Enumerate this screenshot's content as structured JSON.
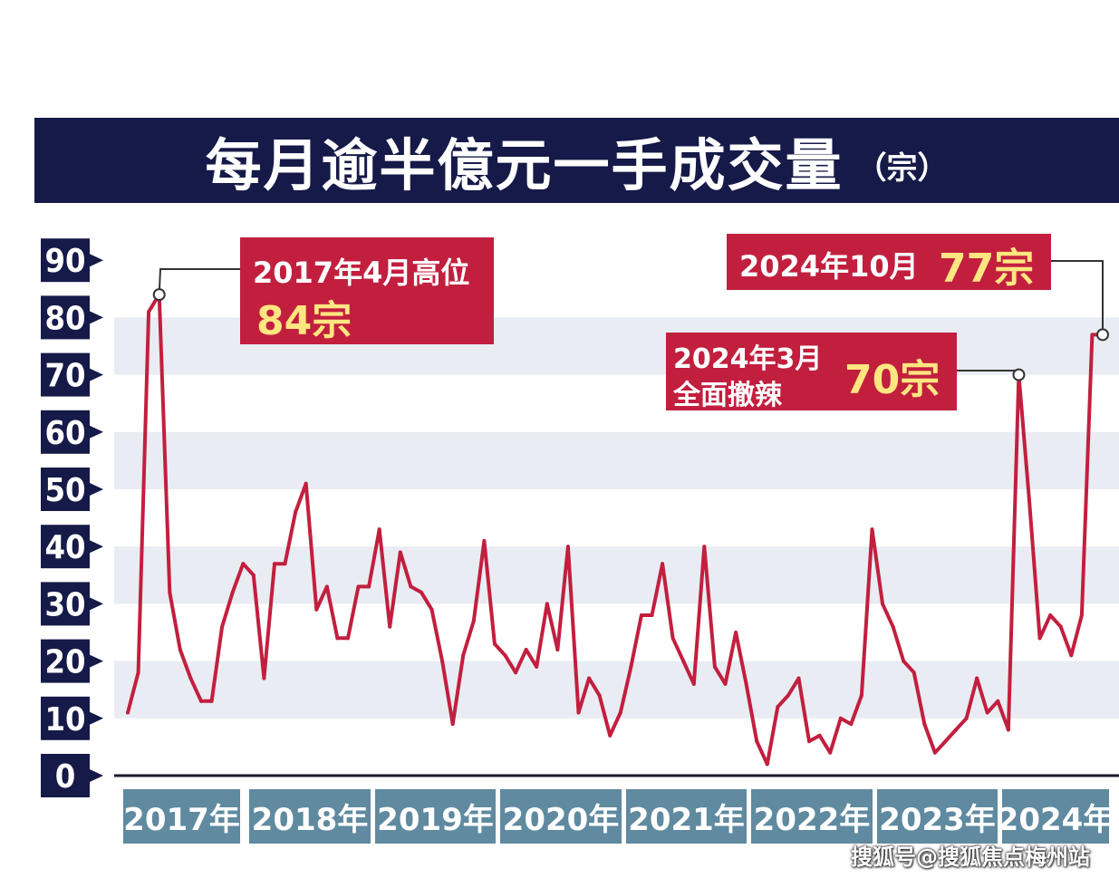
{
  "title": "每月逾半億元一手成交量",
  "title_unit": "（宗）",
  "watermark": "搜狐号@搜狐焦点梅州站",
  "colors": {
    "title_bg": "#161a48",
    "axis_tag": "#161a48",
    "line": "#c21f3f",
    "callout_bg": "#c21f3f",
    "callout_value": "#ffe680",
    "year_box": "#5f8aa0",
    "band": "#e9ecf3"
  },
  "callouts": {
    "peak_2017": {
      "line1": "2017年4月高位",
      "value": "84宗"
    },
    "peak_2024_oct": {
      "line1": "2024年10月",
      "value": "77宗"
    },
    "peak_2024_mar": {
      "line1": "2024年3月",
      "line2": "全面撤辣",
      "value": "70宗"
    }
  },
  "chart_data": {
    "type": "line",
    "title": "每月逾半億元一手成交量",
    "ylabel": "（宗）",
    "ylim": [
      0,
      90
    ],
    "yticks": [
      0,
      10,
      20,
      30,
      40,
      50,
      60,
      70,
      80,
      90
    ],
    "years": [
      "2017年",
      "2018年",
      "2019年",
      "2020年",
      "2021年",
      "2022年",
      "2023年",
      "2024年"
    ],
    "x_start": "2017-01",
    "x_end": "2024-10",
    "series": [
      {
        "values": [
          11,
          18,
          81,
          84,
          32,
          22,
          17,
          13,
          13,
          26,
          32,
          37,
          35,
          17,
          37,
          37,
          46,
          51,
          29,
          33,
          24,
          24,
          33,
          33,
          43,
          26,
          39,
          33,
          32,
          29,
          20,
          9,
          21,
          27,
          41,
          23,
          21,
          18,
          22,
          19,
          30,
          22,
          40,
          11,
          17,
          14,
          7,
          11,
          19,
          28,
          28,
          37,
          24,
          20,
          16,
          40,
          19,
          16,
          25,
          16,
          6,
          2,
          12,
          14,
          17,
          6,
          7,
          4,
          10,
          9,
          14,
          43,
          30,
          26,
          20,
          18,
          9,
          4,
          6,
          8,
          10,
          17,
          11,
          13,
          8,
          70,
          48,
          24,
          28,
          26,
          21,
          28,
          77,
          77
        ]
      }
    ]
  }
}
